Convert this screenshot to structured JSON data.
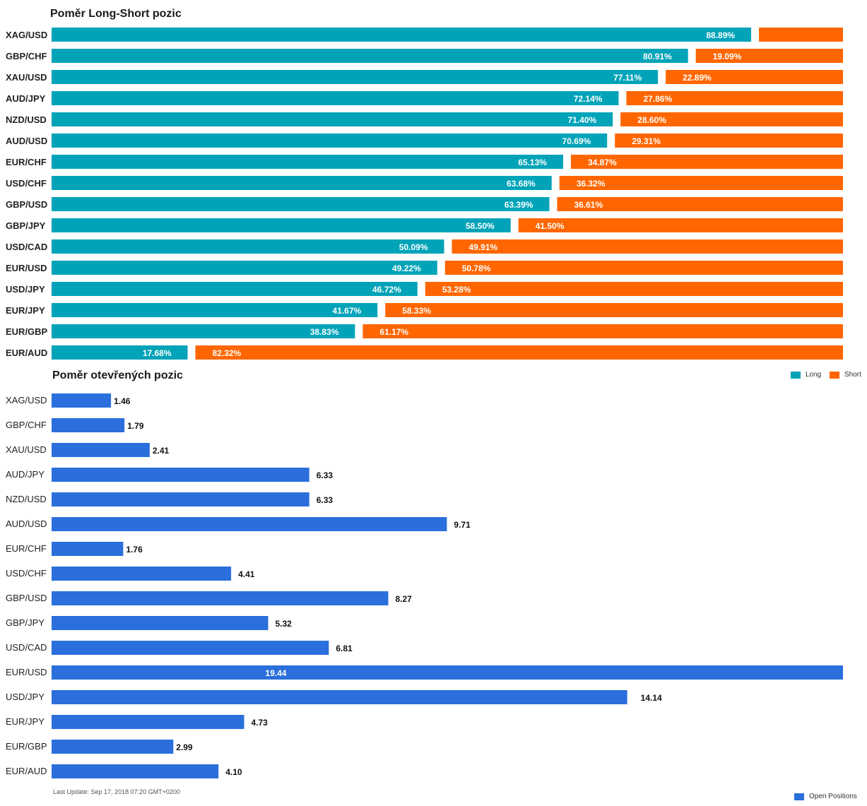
{
  "colors": {
    "long": "#00A3B8",
    "short": "#FF6600",
    "open": "#2A6FDB",
    "label_dark": "#111111",
    "label_light": "#ffffff"
  },
  "chart_data": [
    {
      "type": "bar",
      "orientation": "horizontal",
      "stacked": true,
      "title": "Poměr Long-Short pozic",
      "categories": [
        "XAG/USD",
        "GBP/CHF",
        "XAU/USD",
        "AUD/JPY",
        "NZD/USD",
        "AUD/USD",
        "EUR/CHF",
        "USD/CHF",
        "GBP/USD",
        "GBP/JPY",
        "USD/CAD",
        "EUR/USD",
        "USD/JPY",
        "EUR/JPY",
        "EUR/GBP",
        "EUR/AUD"
      ],
      "series": [
        {
          "name": "Long",
          "color": "#00A3B8",
          "values": [
            88.89,
            80.91,
            77.11,
            72.14,
            71.4,
            70.69,
            65.13,
            63.68,
            63.39,
            58.5,
            50.09,
            49.22,
            46.72,
            41.67,
            38.83,
            17.68
          ],
          "labels": [
            "88.89%",
            "80.91%",
            "77.11%",
            "72.14%",
            "71.40%",
            "70.69%",
            "65.13%",
            "63.68%",
            "63.39%",
            "58.50%",
            "50.09%",
            "49.22%",
            "46.72%",
            "41.67%",
            "38.83%",
            "17.68%"
          ]
        },
        {
          "name": "Short",
          "color": "#FF6600",
          "values": [
            11.11,
            19.09,
            22.89,
            27.86,
            28.6,
            29.31,
            34.87,
            36.32,
            36.61,
            41.5,
            49.91,
            50.78,
            53.28,
            58.33,
            61.17,
            82.32
          ],
          "labels": [
            "",
            "19.09%",
            "22.89%",
            "27.86%",
            "28.60%",
            "29.31%",
            "34.87%",
            "36.32%",
            "36.61%",
            "41.50%",
            "49.91%",
            "50.78%",
            "53.28%",
            "58.33%",
            "61.17%",
            "82.32%"
          ]
        }
      ],
      "xlim": [
        0,
        100
      ],
      "legend_position": "bottom-right"
    },
    {
      "type": "bar",
      "orientation": "horizontal",
      "title": "Poměr otevřených pozic",
      "categories": [
        "XAG/USD",
        "GBP/CHF",
        "XAU/USD",
        "AUD/JPY",
        "NZD/USD",
        "AUD/USD",
        "EUR/CHF",
        "USD/CHF",
        "GBP/USD",
        "GBP/JPY",
        "USD/CAD",
        "EUR/USD",
        "USD/JPY",
        "EUR/JPY",
        "EUR/GBP",
        "EUR/AUD"
      ],
      "series": [
        {
          "name": "Open Positions",
          "color": "#2A6FDB",
          "values": [
            1.46,
            1.79,
            2.41,
            6.33,
            6.33,
            9.71,
            1.76,
            4.41,
            8.27,
            5.32,
            6.81,
            19.44,
            14.14,
            4.73,
            2.99,
            4.1
          ],
          "labels": [
            "1.46",
            "1.79",
            "2.41",
            "6.33",
            "6.33",
            "9.71",
            "1.76",
            "4.41",
            "8.27",
            "5.32",
            "6.81",
            "19.44",
            "14.14",
            "4.73",
            "2.99",
            "4.10"
          ]
        }
      ],
      "xlim": [
        0,
        19.44
      ],
      "legend_position": "bottom-right"
    }
  ],
  "footer": {
    "last_update": "Last Update: Sep 17, 2018 07:20 GMT+0200"
  }
}
